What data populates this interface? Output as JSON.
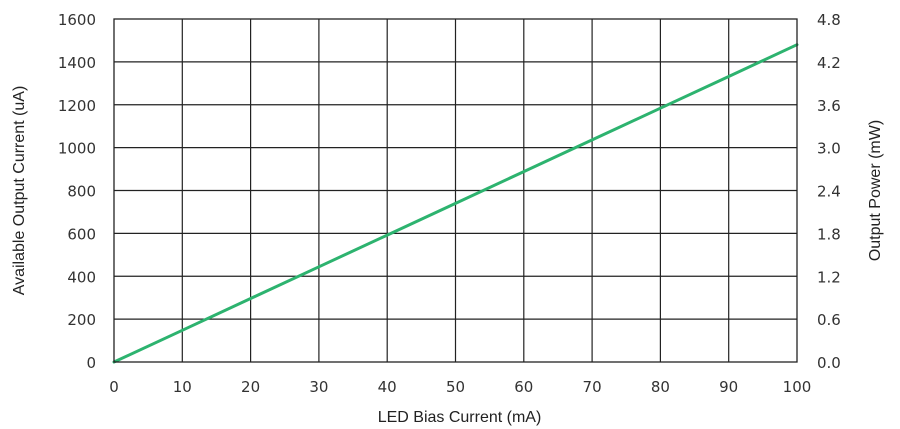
{
  "chart_data": {
    "type": "line",
    "title": "",
    "xlabel": "LED Bias Current (mA)",
    "ylabel": "Available Output Current (uA)",
    "y2label": "Output Power (mW)",
    "xlim": [
      0,
      100
    ],
    "ylim": [
      0,
      1600
    ],
    "y2lim": [
      0.0,
      4.8
    ],
    "xticks": [
      "0",
      "10",
      "20",
      "30",
      "40",
      "50",
      "60",
      "70",
      "80",
      "90",
      "100"
    ],
    "yticks": [
      "0",
      "200",
      "400",
      "600",
      "800",
      "1000",
      "1200",
      "1400",
      "1600"
    ],
    "y2ticks": [
      "0.0",
      "0.6",
      "1.2",
      "1.8",
      "2.4",
      "3.0",
      "3.6",
      "4.2",
      "4.8"
    ],
    "grid": true,
    "series": [
      {
        "color": "#2db36f",
        "x": [
          0,
          10,
          20,
          30,
          40,
          50,
          60,
          70,
          80,
          90,
          100
        ],
        "y": [
          0,
          148,
          296,
          444,
          592,
          740,
          888,
          1036,
          1184,
          1332,
          1480
        ]
      }
    ]
  }
}
